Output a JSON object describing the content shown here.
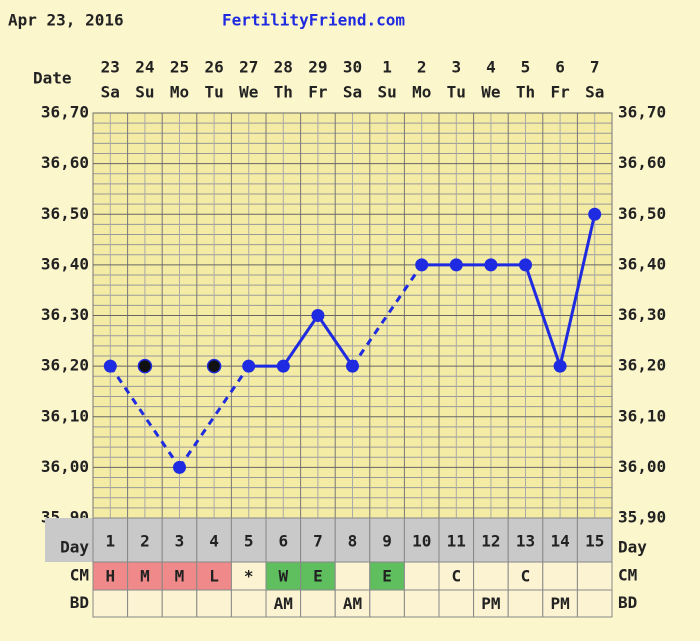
{
  "header": {
    "date": "Apr 23, 2016",
    "site": "FertilityFriend.com"
  },
  "chart_data": {
    "type": "line",
    "date_label": "Date",
    "categories": [
      "23",
      "24",
      "25",
      "26",
      "27",
      "28",
      "29",
      "30",
      "1",
      "2",
      "3",
      "4",
      "5",
      "6",
      "7"
    ],
    "weekdays": [
      "Sa",
      "Su",
      "Mo",
      "Tu",
      "We",
      "Th",
      "Fr",
      "Sa",
      "Su",
      "Mo",
      "Tu",
      "We",
      "Th",
      "Fr",
      "Sa"
    ],
    "series": [
      {
        "color": "#1f2be0",
        "values": [
          36.2,
          null,
          36.0,
          null,
          36.2,
          36.2,
          36.3,
          36.2,
          null,
          36.4,
          36.4,
          36.4,
          36.4,
          36.2,
          36.5
        ]
      },
      {
        "color": "#111111",
        "values": [
          null,
          36.2,
          null,
          36.2,
          null,
          null,
          null,
          null,
          null,
          null,
          null,
          null,
          null,
          null,
          null
        ]
      }
    ],
    "ylim": [
      35.9,
      36.7
    ],
    "yticks": [
      {
        "value": 35.9,
        "label": "35,90"
      },
      {
        "value": 36.0,
        "label": "36,00"
      },
      {
        "value": 36.1,
        "label": "36,10"
      },
      {
        "value": 36.2,
        "label": "36,20"
      },
      {
        "value": 36.3,
        "label": "36,30"
      },
      {
        "value": 36.4,
        "label": "36,40"
      },
      {
        "value": 36.5,
        "label": "36,50"
      },
      {
        "value": 36.6,
        "label": "36,60"
      },
      {
        "value": 36.7,
        "label": "36,70"
      }
    ],
    "grid": true,
    "day_label": "Day",
    "days": [
      1,
      2,
      3,
      4,
      5,
      6,
      7,
      8,
      9,
      10,
      11,
      12,
      13,
      14,
      15
    ],
    "cm_label": "CM",
    "cm": [
      "H",
      "M",
      "M",
      "L",
      "*",
      "W",
      "E",
      null,
      "E",
      null,
      "C",
      null,
      "C",
      null,
      null
    ],
    "cm_colors": {
      "H": "#f08a8a",
      "M": "#f08a8a",
      "L": "#f08a8a",
      "W": "#5fbf5f",
      "E": "#5fbf5f"
    },
    "bd_label": "BD",
    "bd": [
      null,
      null,
      null,
      null,
      null,
      "AM",
      null,
      "AM",
      null,
      null,
      null,
      "PM",
      null,
      "PM",
      null
    ]
  }
}
